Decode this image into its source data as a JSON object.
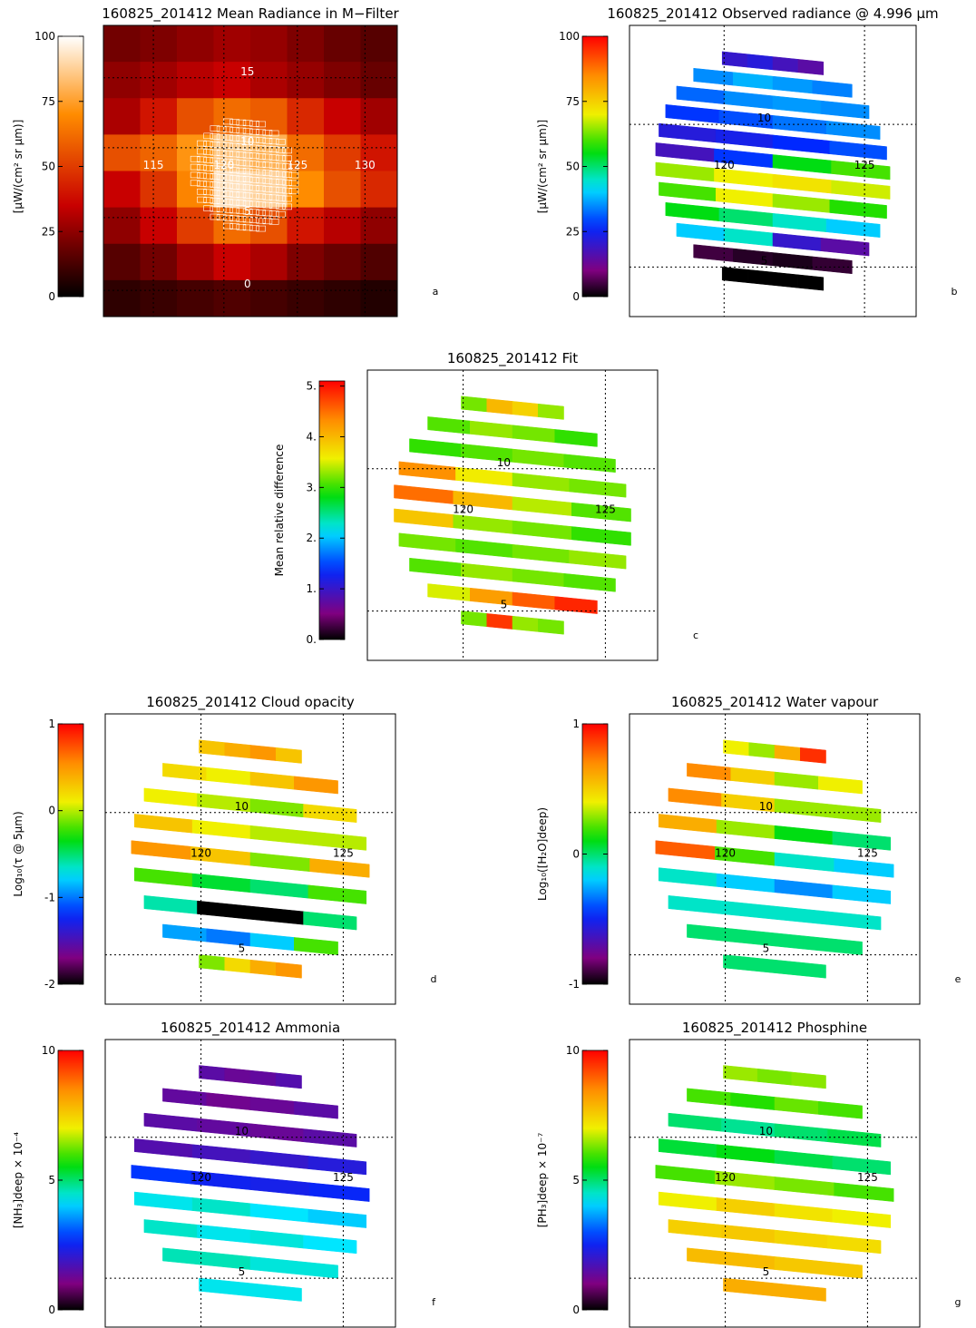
{
  "chart_data": [
    {
      "type": "image",
      "title": "160825_201412 Mean Radiance in M−Filter",
      "colorbar_label": "[μW/(cm² sr μm)]",
      "colormap": "hot",
      "clim": [
        0,
        100
      ],
      "cticks": [
        0,
        25,
        50,
        75,
        100
      ],
      "lat": [
        15,
        10,
        5,
        0
      ],
      "lon": [
        115,
        120,
        125,
        130
      ],
      "panel": "a",
      "rows": [
        [
          20,
          22,
          25,
          28,
          26,
          22,
          18,
          15
        ],
        [
          25,
          28,
          32,
          35,
          30,
          26,
          22,
          18
        ],
        [
          30,
          40,
          55,
          62,
          58,
          45,
          35,
          28
        ],
        [
          55,
          60,
          72,
          85,
          80,
          62,
          50,
          40
        ],
        [
          35,
          48,
          68,
          92,
          88,
          70,
          55,
          45
        ],
        [
          25,
          35,
          50,
          62,
          55,
          40,
          32,
          25
        ],
        [
          15,
          20,
          28,
          35,
          30,
          22,
          18,
          14
        ],
        [
          8,
          10,
          12,
          14,
          12,
          10,
          8,
          6
        ]
      ]
    },
    {
      "type": "swath",
      "title": "160825_201412 Observed radiance @ 4.996 μm",
      "colorbar_label": "[μW/(cm² sr μm)]",
      "colormap": "rainbow",
      "clim": [
        0,
        100
      ],
      "cticks": [
        0,
        25,
        50,
        75,
        100
      ],
      "lat": [
        10,
        5
      ],
      "lon": [
        120,
        125
      ],
      "panel": "b",
      "stripes": [
        [
          20,
          22,
          18,
          15
        ],
        [
          35,
          38,
          36,
          34
        ],
        [
          32,
          35,
          36,
          35
        ],
        [
          28,
          30,
          33,
          35
        ],
        [
          22,
          24,
          27,
          30
        ],
        [
          18,
          28,
          55,
          60
        ],
        [
          65,
          70,
          72,
          68
        ],
        [
          60,
          70,
          65,
          58
        ],
        [
          55,
          50,
          45,
          40
        ],
        [
          40,
          45,
          20,
          15
        ],
        [
          5,
          3,
          2,
          4
        ],
        [
          0,
          0,
          0,
          0
        ]
      ]
    },
    {
      "type": "swath",
      "title": "160825_201412 Fit",
      "colorbar_label": "Mean relative difference",
      "colormap": "rainbow",
      "clim": [
        0,
        5.1
      ],
      "cticks": [
        {
          "value": 0,
          "label": "0."
        },
        {
          "value": 1,
          "label": "1."
        },
        {
          "value": 2,
          "label": "2."
        },
        {
          "value": 3,
          "label": "3."
        },
        {
          "value": 4,
          "label": "4."
        },
        {
          "value": 5,
          "label": "5."
        }
      ],
      "lat": [
        10,
        5
      ],
      "lon": [
        120,
        125
      ],
      "panel": "c",
      "stripes": [
        [
          3.2,
          4.0,
          3.8,
          3.3
        ],
        [
          3.1,
          3.3,
          3.2,
          3.0
        ],
        [
          3.0,
          3.1,
          3.2,
          3.1
        ],
        [
          4.3,
          3.6,
          3.3,
          3.2
        ],
        [
          4.5,
          4.0,
          3.4,
          3.1
        ],
        [
          3.9,
          3.3,
          3.2,
          3.0
        ],
        [
          3.2,
          3.1,
          3.2,
          3.3
        ],
        [
          3.1,
          3.3,
          3.2,
          3.1
        ],
        [
          3.5,
          4.2,
          4.6,
          4.9
        ],
        [
          3.2,
          4.8,
          3.3,
          3.2
        ]
      ]
    },
    {
      "type": "swath",
      "title": "160825_201412 Cloud opacity",
      "colorbar_label": "Log₁₀(τ @ 5μm)",
      "colormap": "rainbow",
      "clim": [
        -2,
        1
      ],
      "cticks": [
        -2,
        -1,
        0,
        1
      ],
      "lat": [
        10,
        5
      ],
      "lon": [
        120,
        125
      ],
      "panel": "d",
      "stripes": [
        [
          0.3,
          0.4,
          0.5,
          0.3
        ],
        [
          0.2,
          0.1,
          0.3,
          0.5
        ],
        [
          0.1,
          0.0,
          -0.1,
          0.2
        ],
        [
          0.3,
          0.1,
          0.0,
          0.0
        ],
        [
          0.5,
          0.3,
          -0.1,
          0.4
        ],
        [
          -0.2,
          -0.4,
          -0.5,
          -0.2
        ],
        [
          -0.6,
          -2,
          -2,
          -0.5
        ],
        [
          -0.9,
          -1.0,
          -0.8,
          -0.2
        ],
        [
          -0.1,
          0.2,
          0.4,
          0.5
        ]
      ]
    },
    {
      "type": "swath",
      "title": "160825_201412 Water vapour",
      "colorbar_label": "Log₁₀([H₂O]deep)",
      "colormap": "rainbow",
      "clim": [
        -1,
        1
      ],
      "cticks": [
        -1,
        0,
        1
      ],
      "lat": [
        10,
        5
      ],
      "lon": [
        120,
        125
      ],
      "panel": "e",
      "stripes": [
        [
          0.4,
          0.3,
          0.6,
          0.9
        ],
        [
          0.7,
          0.5,
          0.3,
          0.4
        ],
        [
          0.7,
          0.5,
          0.3,
          0.3
        ],
        [
          0.6,
          0.3,
          0.1,
          0.0
        ],
        [
          0.8,
          0.2,
          -0.1,
          -0.2
        ],
        [
          -0.1,
          -0.2,
          -0.3,
          -0.2
        ],
        [
          -0.1,
          -0.1,
          -0.1,
          -0.1
        ],
        [
          0.0,
          0.0,
          0.0
        ],
        [
          0.0
        ]
      ]
    },
    {
      "type": "swath",
      "title": "160825_201412 Ammonia",
      "colorbar_label": "[NH₃]deep × 10⁻⁴",
      "colormap": "rainbow",
      "clim": [
        0,
        10
      ],
      "cticks": [
        0,
        5,
        10
      ],
      "lat": [
        10,
        5
      ],
      "lon": [
        120,
        125
      ],
      "panel": "f",
      "stripes": [
        [
          1.5,
          1.3,
          1.4,
          1.6
        ],
        [
          1.4,
          1.2,
          1.3,
          1.5
        ],
        [
          1.5,
          1.4,
          1.3,
          1.5
        ],
        [
          1.6,
          1.8,
          2.0,
          2.2
        ],
        [
          2.8,
          2.5,
          2.4,
          2.6
        ],
        [
          4.3,
          4.5,
          4.2,
          4.0
        ],
        [
          4.5,
          4.3,
          4.4,
          4.2
        ],
        [
          4.6,
          4.4
        ],
        [
          4.3
        ]
      ]
    },
    {
      "type": "swath",
      "title": "160825_201412 Phosphine",
      "colorbar_label": "[PH₃]deep × 10⁻⁷",
      "colormap": "rainbow",
      "clim": [
        0,
        10
      ],
      "cticks": [
        0,
        5,
        10
      ],
      "lat": [
        10,
        5
      ],
      "lon": [
        120,
        125
      ],
      "panel": "g",
      "stripes": [
        [
          6.5,
          6.3,
          6.4
        ],
        [
          6.0,
          5.8,
          6.2,
          6.0
        ],
        [
          5.0,
          4.8,
          5.0,
          5.2
        ],
        [
          5.3,
          5.5,
          5.2,
          5.0
        ],
        [
          6.0,
          6.5,
          6.3,
          6.0
        ],
        [
          7.0,
          7.5,
          7.2,
          7.0
        ],
        [
          7.5,
          7.6,
          7.4,
          7.3
        ],
        [
          7.8,
          7.6
        ],
        [
          8.0
        ]
      ]
    }
  ]
}
